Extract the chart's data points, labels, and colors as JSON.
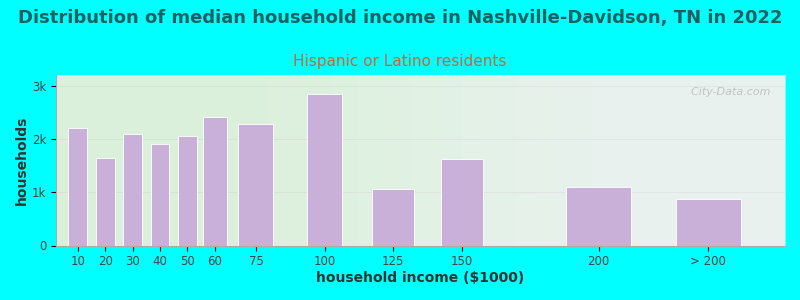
{
  "title": "Distribution of median household income in Nashville-Davidson, TN in 2022",
  "subtitle": "Hispanic or Latino residents",
  "xlabel": "household income ($1000)",
  "ylabel": "households",
  "bar_color": "#c8b0d8",
  "bar_edgecolor": "#ffffff",
  "background_color": "#00ffff",
  "plot_bg_left": "#ddf0dd",
  "plot_bg_right": "#f5f5ff",
  "title_color": "#1a6060",
  "subtitle_color": "#cc6633",
  "categories": [
    "10",
    "20",
    "30",
    "40",
    "50",
    "60",
    "75",
    "100",
    "125",
    "150",
    "200",
    "> 200"
  ],
  "values": [
    2200,
    1650,
    2100,
    1900,
    2060,
    2420,
    2280,
    2850,
    1060,
    1620,
    1100,
    870
  ],
  "ylim": [
    0,
    3200
  ],
  "yticks": [
    0,
    1000,
    2000,
    3000
  ],
  "ytick_labels": [
    "0",
    "1k",
    "2k",
    "3k"
  ],
  "title_fontsize": 13,
  "subtitle_fontsize": 11,
  "axis_label_fontsize": 10,
  "tick_fontsize": 8.5,
  "watermark_text": "  City-Data.com",
  "bar_positions": [
    10,
    20,
    30,
    40,
    50,
    60,
    75,
    100,
    125,
    150,
    200,
    240
  ],
  "bar_widths": [
    8,
    8,
    8,
    8,
    8,
    10,
    15,
    15,
    18,
    18,
    28,
    28
  ]
}
